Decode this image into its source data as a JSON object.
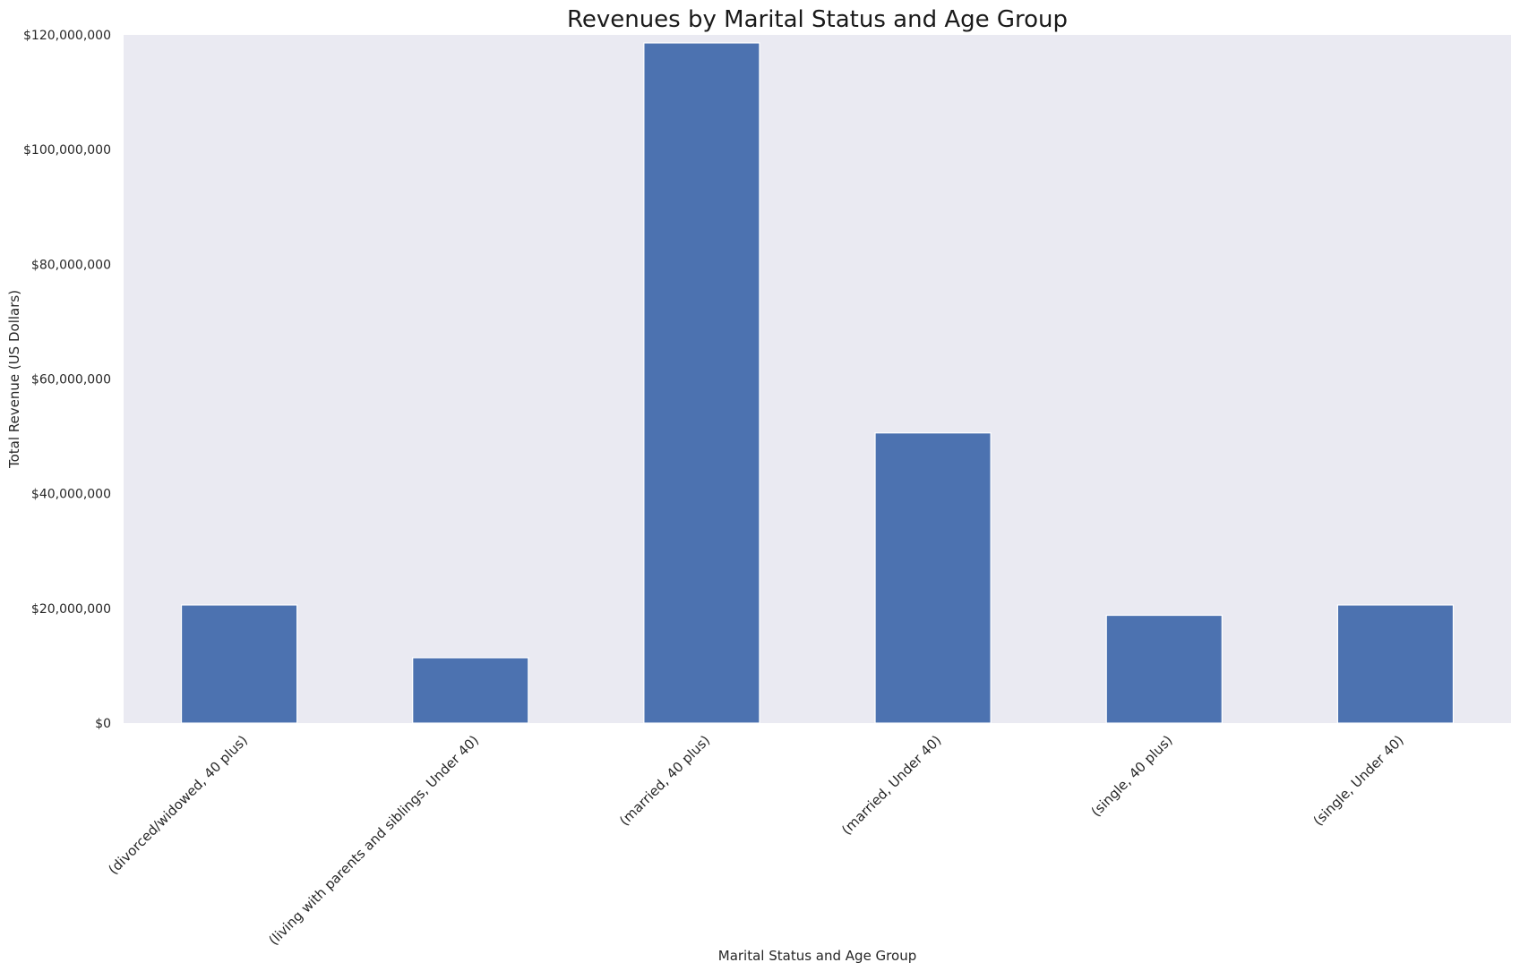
{
  "chart_data": {
    "type": "bar",
    "title": "Revenues by Marital Status and Age Group",
    "xlabel": "Marital Status and Age Group",
    "ylabel": "Total Revenue (US Dollars)",
    "categories": [
      "(divorced/widowed, 40 plus)",
      "(living with parents and siblings, Under 40)",
      "(married, 40 plus)",
      "(married, Under 40)",
      "(single, 40 plus)",
      "(single, Under 40)"
    ],
    "values": [
      20600000,
      11400000,
      118600000,
      50600000,
      18800000,
      20600000
    ],
    "ylim": [
      0,
      120000000
    ],
    "yticks": [
      0,
      20000000,
      40000000,
      60000000,
      80000000,
      100000000,
      120000000
    ],
    "ytick_labels": [
      "$0",
      "$20,000,000",
      "$40,000,000",
      "$60,000,000",
      "$80,000,000",
      "$100,000,000",
      "$120,000,000"
    ],
    "grid": false,
    "legend": "none",
    "colors": {
      "bar": "#4c72b0",
      "plot_background": "#eaeaf2",
      "bar_edge": "#ffffff"
    }
  }
}
